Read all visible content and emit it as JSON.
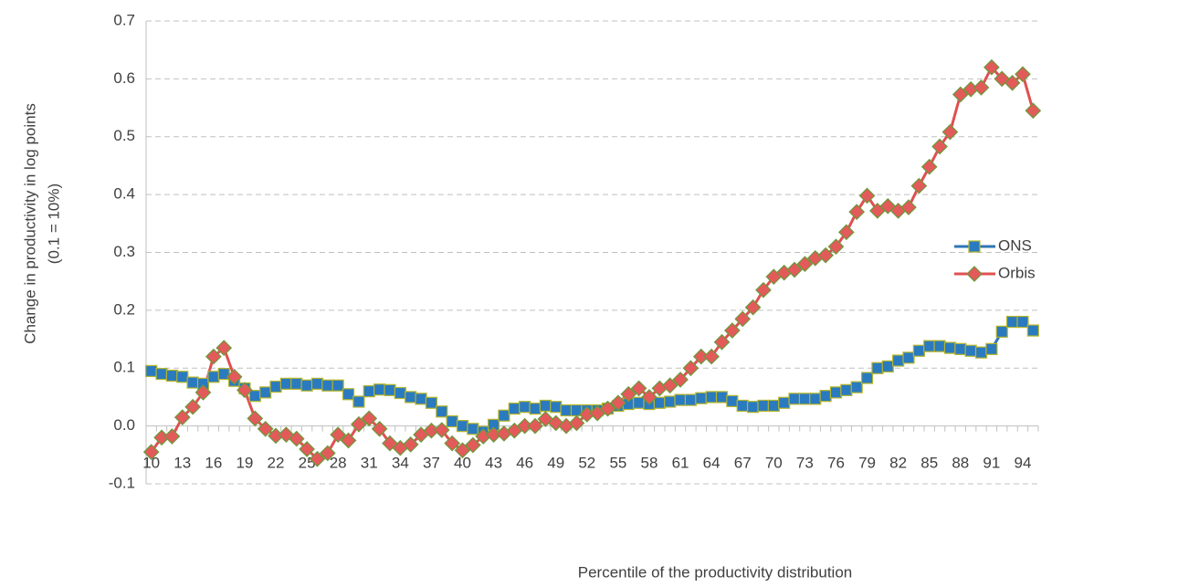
{
  "chart_data": {
    "type": "line",
    "ylabel": [
      "Change in productivity in log points",
      "(0.1 = 10%)"
    ],
    "xlabel": "Percentile of the productivity distribution",
    "categories": [
      "10",
      null,
      null,
      "13",
      null,
      null,
      "16",
      null,
      null,
      "19",
      null,
      null,
      "22",
      null,
      null,
      "25",
      null,
      null,
      "28",
      null,
      null,
      "31",
      null,
      null,
      "34",
      null,
      null,
      "37",
      null,
      null,
      "40",
      null,
      null,
      "43",
      null,
      null,
      "46",
      null,
      null,
      "49",
      null,
      null,
      "52",
      null,
      null,
      "55",
      null,
      null,
      "58",
      null,
      null,
      "61",
      null,
      null,
      "64",
      null,
      null,
      "67",
      null,
      null,
      "70",
      null,
      null,
      "73",
      null,
      null,
      "76",
      null,
      null,
      "79",
      null,
      null,
      "82",
      null,
      null,
      "85",
      null,
      null,
      "88",
      null,
      null,
      "91",
      null,
      null,
      "94",
      null
    ],
    "series": [
      {
        "name": "ONS",
        "color": "#2e75b6",
        "marker": "square",
        "marker_fill": "#2a7ac0",
        "marker_edge": "#b5b52a",
        "values": [
          0.095,
          0.09,
          0.087,
          0.085,
          0.075,
          0.073,
          0.085,
          0.09,
          0.078,
          0.065,
          0.052,
          0.058,
          0.068,
          0.073,
          0.073,
          0.07,
          0.073,
          0.07,
          0.07,
          0.055,
          0.042,
          0.06,
          0.063,
          0.062,
          0.057,
          0.05,
          0.047,
          0.04,
          0.025,
          0.008,
          0.0,
          -0.005,
          -0.01,
          0.002,
          0.018,
          0.03,
          0.033,
          0.03,
          0.035,
          0.033,
          0.027,
          0.027,
          0.027,
          0.027,
          0.03,
          0.035,
          0.038,
          0.04,
          0.038,
          0.04,
          0.042,
          0.045,
          0.045,
          0.048,
          0.05,
          0.05,
          0.043,
          0.035,
          0.033,
          0.035,
          0.035,
          0.04,
          0.047,
          0.047,
          0.047,
          0.052,
          0.058,
          0.062,
          0.067,
          0.083,
          0.1,
          0.103,
          0.113,
          0.118,
          0.13,
          0.138,
          0.138,
          0.135,
          0.133,
          0.13,
          0.127,
          0.133,
          0.163,
          0.18,
          0.18,
          0.165
        ]
      },
      {
        "name": "Orbis",
        "color": "#e05050",
        "marker": "diamond",
        "marker_fill": "#e35a5a",
        "marker_edge": "#6a9a3a",
        "values": [
          -0.045,
          -0.02,
          -0.018,
          0.015,
          0.033,
          0.058,
          0.12,
          0.135,
          0.085,
          0.062,
          0.013,
          -0.005,
          -0.017,
          -0.015,
          -0.022,
          -0.04,
          -0.057,
          -0.047,
          -0.015,
          -0.025,
          0.003,
          0.013,
          -0.005,
          -0.03,
          -0.038,
          -0.032,
          -0.015,
          -0.008,
          -0.007,
          -0.03,
          -0.042,
          -0.033,
          -0.018,
          -0.015,
          -0.013,
          -0.008,
          0.0,
          0.0,
          0.012,
          0.005,
          0.0,
          0.005,
          0.02,
          0.022,
          0.03,
          0.04,
          0.055,
          0.065,
          0.05,
          0.065,
          0.07,
          0.08,
          0.1,
          0.12,
          0.12,
          0.145,
          0.165,
          0.185,
          0.205,
          0.235,
          0.258,
          0.265,
          0.27,
          0.28,
          0.29,
          0.295,
          0.31,
          0.335,
          0.37,
          0.398,
          0.372,
          0.38,
          0.372,
          0.378,
          0.415,
          0.448,
          0.483,
          0.508,
          0.573,
          0.582,
          0.585,
          0.62,
          0.6,
          0.593,
          0.608,
          0.545
        ]
      }
    ],
    "ylim": [
      -0.1,
      0.7
    ],
    "yticks": [
      -0.1,
      {
        "value": 0,
        "label": "0.0"
      },
      0.1,
      0.2,
      0.3,
      0.4,
      0.5,
      0.6,
      0.7
    ],
    "grid": true,
    "legend": "right"
  }
}
